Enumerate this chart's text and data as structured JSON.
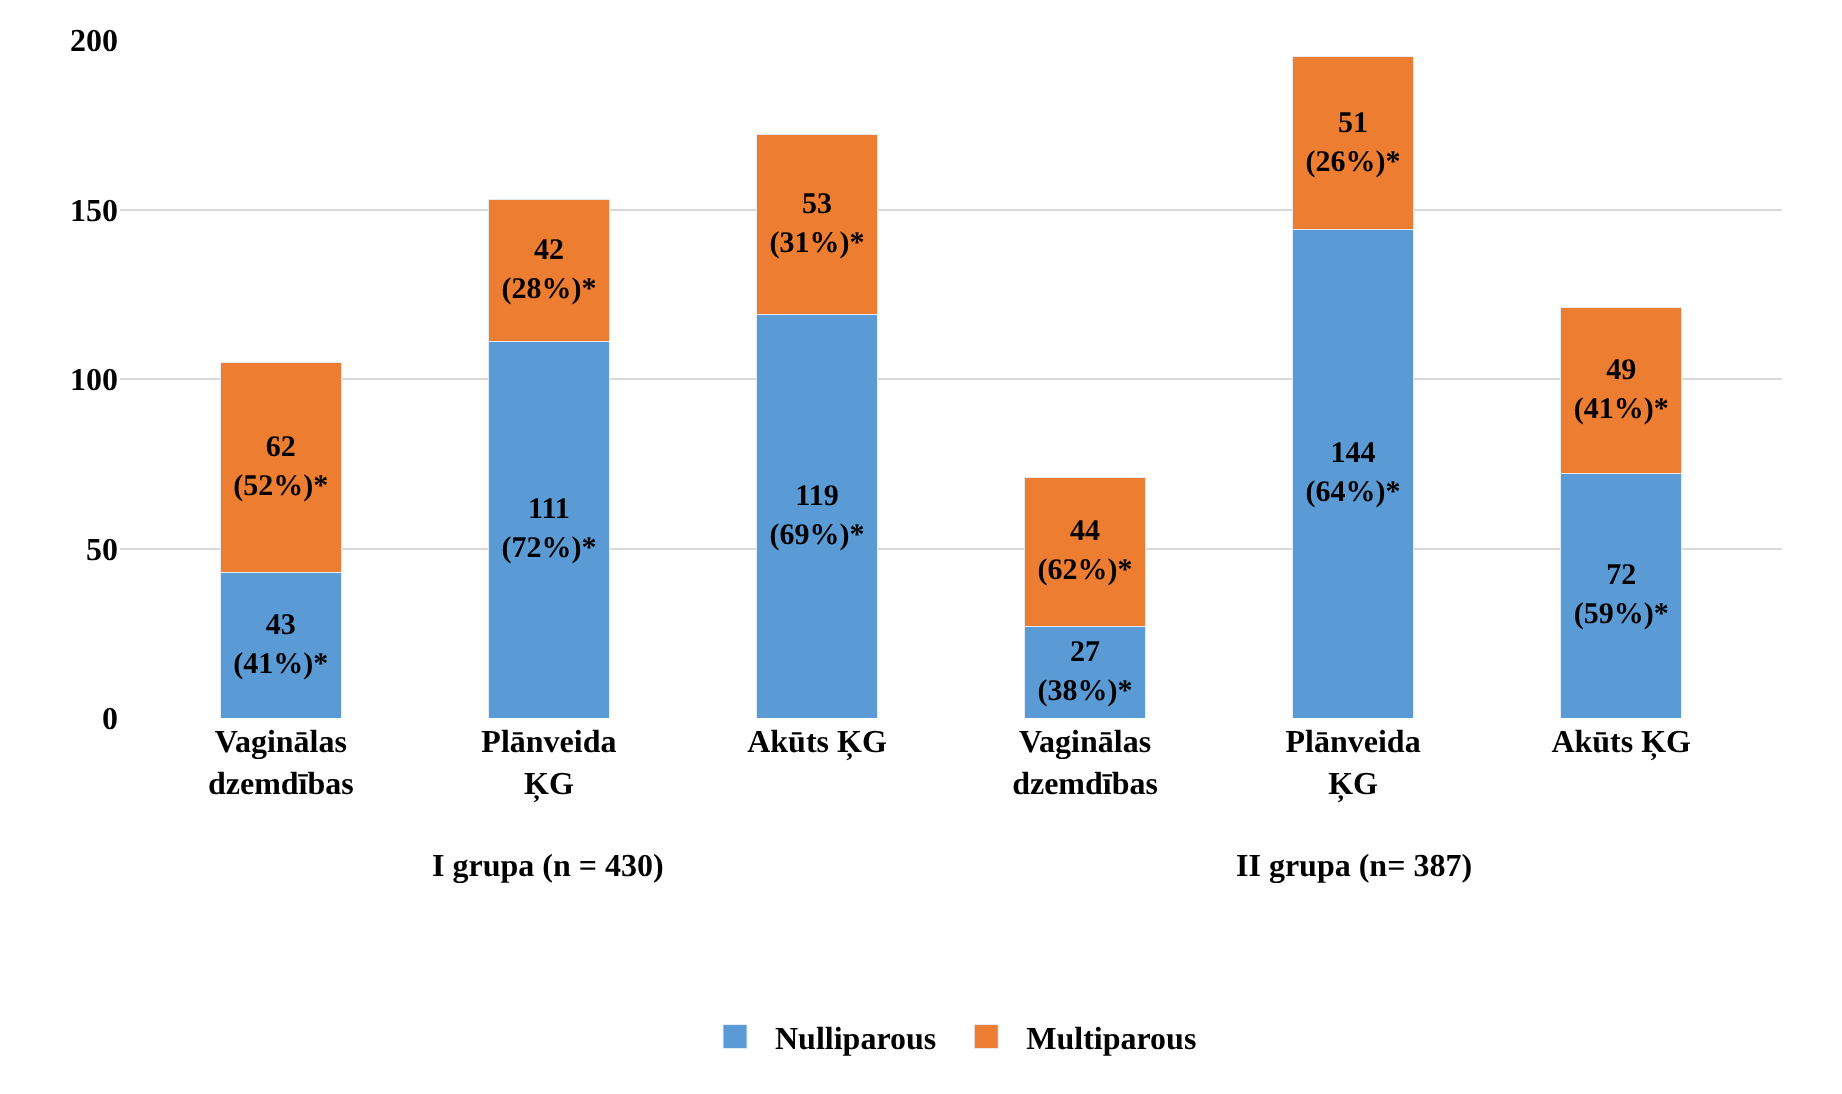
{
  "chart_data": {
    "type": "bar",
    "stacked": true,
    "categories": [
      "Vaginālas\ndzemdības",
      "Plānveida\nĶG",
      "Akūts ĶG",
      "Vaginālas\ndzemdības",
      "Plānveida\nĶG",
      "Akūts ĶG"
    ],
    "series": [
      {
        "name": "Nulliparous",
        "color": "#5b9bd5",
        "values": [
          43,
          111,
          119,
          27,
          144,
          72
        ],
        "value_labels": [
          "43\n(41%)*",
          "111\n(72%)*",
          "119\n(69%)*",
          "27\n(38%)*",
          "144\n(64%)*",
          "72\n(59%)*"
        ]
      },
      {
        "name": "Multiparous",
        "color": "#ed7d31",
        "values": [
          62,
          42,
          53,
          44,
          51,
          49
        ],
        "value_labels": [
          "62\n(52%)*",
          "42\n(28%)*",
          "53\n(31%)*",
          "44\n(62%)*",
          "51\n(26%)*",
          "49\n(41%)*"
        ]
      }
    ],
    "ylim": [
      0,
      200
    ],
    "yticks": [
      0,
      50,
      100,
      150,
      200
    ],
    "grid": "y",
    "legend": "bottom",
    "annotations": [
      "I grupa (n = 430)",
      "II grupa (n= 387)"
    ]
  }
}
